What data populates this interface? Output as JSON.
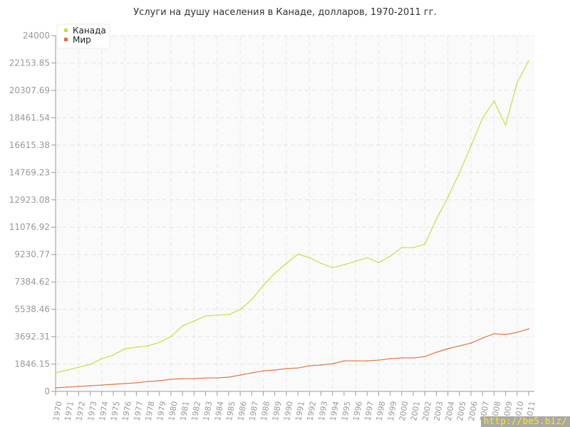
{
  "chart_data": {
    "type": "line",
    "title": "Услуги на душу населения в Канаде, долларов, 1970-2011 гг.",
    "x": [
      1970,
      1971,
      1972,
      1973,
      1974,
      1975,
      1976,
      1977,
      1978,
      1979,
      1980,
      1981,
      1982,
      1983,
      1984,
      1985,
      1986,
      1987,
      1988,
      1989,
      1990,
      1991,
      1992,
      1993,
      1994,
      1995,
      1996,
      1997,
      1998,
      1999,
      2000,
      2001,
      2002,
      2003,
      2004,
      2005,
      2006,
      2007,
      2008,
      2009,
      2010,
      2011
    ],
    "yticks": [
      "0",
      "1846.15",
      "3692.31",
      "5538.46",
      "7384.62",
      "9230.77",
      "11076.92",
      "12923.08",
      "14769.23",
      "16615.38",
      "18461.54",
      "20307.69",
      "22153.85",
      "24000"
    ],
    "ylim": [
      0,
      24000
    ],
    "grid": true,
    "legend_placement": "top-left",
    "series": [
      {
        "name": "Канада",
        "color": "#c8e03c",
        "values": [
          1250,
          1440,
          1630,
          1820,
          2210,
          2450,
          2880,
          2980,
          3070,
          3310,
          3700,
          4420,
          4750,
          5090,
          5140,
          5180,
          5520,
          6190,
          7150,
          7970,
          8640,
          9260,
          9020,
          8640,
          8350,
          8540,
          8780,
          9020,
          8690,
          9120,
          9700,
          9700,
          9940,
          11620,
          13100,
          14740,
          16560,
          18430,
          19580,
          17950,
          20830,
          22320
        ]
      },
      {
        "name": "Мир",
        "color": "#e8703c",
        "values": [
          240,
          290,
          340,
          380,
          430,
          480,
          530,
          580,
          670,
          720,
          820,
          860,
          860,
          910,
          910,
          960,
          1100,
          1250,
          1390,
          1440,
          1540,
          1580,
          1730,
          1780,
          1870,
          2060,
          2060,
          2060,
          2110,
          2210,
          2260,
          2260,
          2350,
          2640,
          2880,
          3070,
          3260,
          3600,
          3890,
          3840,
          3980,
          4220
        ]
      }
    ]
  },
  "watermark": "http://be5.biz/"
}
